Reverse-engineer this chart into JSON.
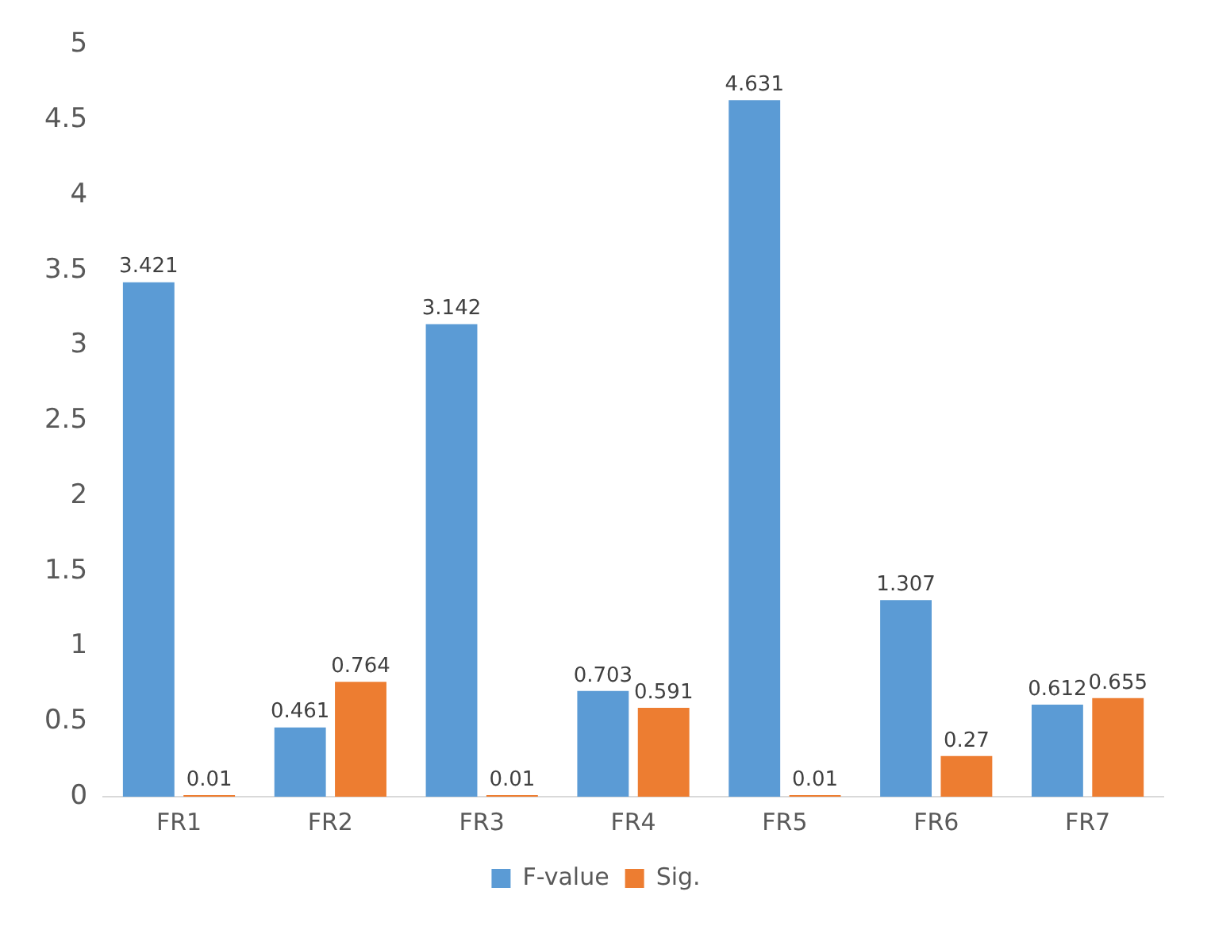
{
  "chart_data": {
    "type": "bar",
    "categories": [
      "FR1",
      "FR2",
      "FR3",
      "FR4",
      "FR5",
      "FR6",
      "FR7"
    ],
    "series": [
      {
        "name": "F-value",
        "color": "#5b9bd5",
        "values": [
          3.421,
          0.461,
          3.142,
          0.703,
          4.631,
          1.307,
          0.612
        ]
      },
      {
        "name": "Sig.",
        "color": "#ed7d31",
        "values": [
          0.01,
          0.764,
          0.01,
          0.591,
          0.01,
          0.27,
          0.655
        ]
      }
    ],
    "ylim": [
      0,
      5
    ],
    "yticks": [
      0,
      0.5,
      1,
      1.5,
      2,
      2.5,
      3,
      3.5,
      4,
      4.5,
      5
    ],
    "grid": false,
    "legend": "bottom",
    "data_labels": true
  }
}
